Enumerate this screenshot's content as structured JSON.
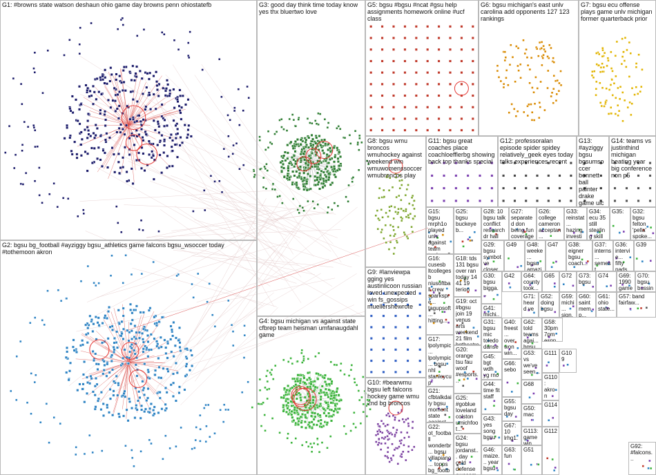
{
  "groups": [
    {
      "label": "G1: #browns state watson deshaun ohio game day browns penn ohiostatefb"
    },
    {
      "label": "G2: bgsu bg_football #ayziggy bgsu_athletics game falcons bgsu_wsoccer today #tothemoon akron"
    },
    {
      "label": "G3: good day think time today know yes thx bluertwo love"
    },
    {
      "label": "G4: bgsu michigan vs against state cfbrep team heisman umfanaugdahl game"
    },
    {
      "label": "G5: bgsu #bgsu #ncat #gsu help assignments homework online #ucf class"
    },
    {
      "label": "G6: bgsu michigan's east unlv carolina add opponents 127 123 rankings"
    },
    {
      "label": "G7: bgsu ecu offense plays game unlv michigan former quarterback prior"
    },
    {
      "label": "G8: bgsu wmu broncos wmuhockey against weekend win wmuwomenssoccer wmubroncos play"
    },
    {
      "label": "G11: bgsu great coaches place coachloefflerbg showing back top thanks special"
    },
    {
      "label": "G12: professoralan episode spider spidey relatively_geek eyes today talks experiences recent"
    },
    {
      "label": "G13: #ayziggy bgsu bgsumsoccer bennett ball painter drake game uic stadium"
    },
    {
      "label": "G14: teams vs justinthind michigan beating year big conference non p5"
    },
    {
      "label": "G9: #lanviewpa gging yes austinlicoon russian loved unexpected win fs_gossips muellershewrote"
    },
    {
      "label": "G10: #bearwmu bgsu left falcons hockey game wmu 2nd bg broncos"
    },
    {
      "label": "G15: bgsu mrph1o played unlv against team terrbear2... ecu wait noncon"
    },
    {
      "label": "G25: bgsu buckeyeb..."
    },
    {
      "label": "G28: 10 bgsu talk conflict research dr hall"
    },
    {
      "label": "G27: separated don being fun coverage"
    },
    {
      "label": "G26: college cameron acceptan... #prexypri..."
    },
    {
      "label": "G33: reinstat... hazing investig... bgsu"
    },
    {
      "label": "G34: ecu 35 still stealing skill issue..."
    },
    {
      "label": "G35:"
    },
    {
      "label": "G32: bgsu felton 'pella' spoke..."
    },
    {
      "label": "G29: bgsu symbot ve closer"
    },
    {
      "label": "G49"
    },
    {
      "label": "G48: weeke... bgsu amazing"
    },
    {
      "label": "G47"
    },
    {
      "label": "G38: eigner bgsu coach..."
    },
    {
      "label": "G37: interns... semest... senior..."
    },
    {
      "label": "G36: intervie... fifty pads..."
    },
    {
      "label": "G39"
    },
    {
      "label": "G18: tds 131 bgsu over ran today 14 41 19 terion"
    },
    {
      "label": "G16: cusesb ltcollegesb niusoftball crew sparkspre... tagupsoft... hitting..."
    },
    {
      "label": "G30: bgsu bigga..."
    },
    {
      "label": "G42"
    },
    {
      "label": "G64: county took..."
    },
    {
      "label": "G65"
    },
    {
      "label": "G72"
    },
    {
      "label": "G73: bgsu"
    },
    {
      "label": "G74"
    },
    {
      "label": "G69: 1990 game..."
    },
    {
      "label": "G70: bgsu bussin..."
    },
    {
      "label": "G19: oct #bgsu join 19 venus arts weekend 21 film bgtheatre..."
    },
    {
      "label": "G41: michi... bgsu"
    },
    {
      "label": "G71: heard ve"
    },
    {
      "label": "G52: doing bgsu"
    },
    {
      "label": "G59: michi... sign..."
    },
    {
      "label": "G60: saint memp..."
    },
    {
      "label": "G61: ohio state..."
    },
    {
      "label": "G57: band fairfaw..."
    },
    {
      "label": "G31: bgsu mic toledo danse..."
    },
    {
      "label": "G62: told teams agai... bgsu"
    },
    {
      "label": "G58: 30pm 7pm espn"
    },
    {
      "label": "G17: lpolympic... lpolympic... bgsu nhl stanleycup 1980mira... nyislande..."
    },
    {
      "label": "G20: orange tsu fau woof #esports..."
    },
    {
      "label": "G40: freest... over won win..."
    },
    {
      "label": "G53: vs we've seen..."
    },
    {
      "label": "G45: bgt wdh yg rno akrg..."
    },
    {
      "label": "G21: cfbtalkdaily bgsu moment state against heisman..."
    },
    {
      "label": "G25: #goblue loveland colston umichfoot... lary_mac"
    },
    {
      "label": "G44: time fit staff"
    },
    {
      "label": "G66: sebo"
    },
    {
      "label": "G22: ot_football wonderbr... bgsu villapiano... topps bg_footba..."
    },
    {
      "label": "G24: bgsu jordanst... day cold defense awesome leaned..."
    },
    {
      "label": "G43: yes song bgsu"
    },
    {
      "label": "G55: bgsu day"
    },
    {
      "label": "G67: 10 lrhg1... bgsu"
    },
    {
      "label": "G68"
    },
    {
      "label": "G50: mac"
    },
    {
      "label": "G46: maize... year bgsu"
    },
    {
      "label": "G63: fun"
    },
    {
      "label": "G51"
    },
    {
      "label": "G111"
    },
    {
      "label": "G110: akron oh..."
    },
    {
      "label": "G109"
    },
    {
      "label": "G114"
    },
    {
      "label": "G113: game win vs..."
    },
    {
      "label": "G112"
    },
    {
      "label": "G92: #falcons..."
    }
  ]
}
